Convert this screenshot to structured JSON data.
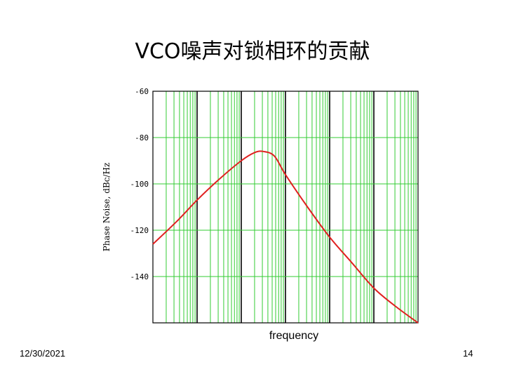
{
  "slide": {
    "title": "VCO噪声对锁相环的贡献",
    "date": "12/30/2021",
    "page_number": "14"
  },
  "chart_data": {
    "type": "line",
    "title": "",
    "xlabel": "frequency",
    "ylabel": "Phase Noise, dBc/Hz",
    "x_scale": "log",
    "x_decades": 6,
    "ylim": [
      -160,
      -60
    ],
    "y_ticks": [
      -60,
      -80,
      -100,
      -120,
      -140
    ],
    "y_tick_labels": [
      "-60",
      "-80",
      "-100",
      "-120",
      "-140"
    ],
    "grid": true,
    "grid_color": "#33cc33",
    "line_color": "#e02020",
    "series": [
      {
        "points": [
          {
            "decade": 0.0,
            "y": -126
          },
          {
            "decade": 0.55,
            "y": -116
          },
          {
            "decade": 1.0,
            "y": -107
          },
          {
            "decade": 1.5,
            "y": -98
          },
          {
            "decade": 2.0,
            "y": -90
          },
          {
            "decade": 2.3,
            "y": -86.5
          },
          {
            "decade": 2.5,
            "y": -86
          },
          {
            "decade": 2.75,
            "y": -88
          },
          {
            "decade": 3.0,
            "y": -96
          },
          {
            "decade": 3.5,
            "y": -110
          },
          {
            "decade": 4.0,
            "y": -123
          },
          {
            "decade": 4.5,
            "y": -134
          },
          {
            "decade": 5.0,
            "y": -145
          },
          {
            "decade": 5.5,
            "y": -153
          },
          {
            "decade": 6.0,
            "y": -160
          }
        ]
      }
    ]
  }
}
